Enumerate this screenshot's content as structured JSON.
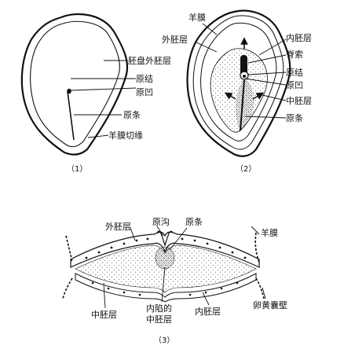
{
  "fig1": {
    "caption": "（1）",
    "labels": {
      "embryonic_disc_epiblast": "胚盘外胚层",
      "primitive_node": "原结",
      "primitive_pit": "原凹",
      "primitive_streak": "原条",
      "amnion_cut_edge": "羊膜切缘"
    }
  },
  "fig2": {
    "caption": "（2）",
    "labels": {
      "amnion": "羊膜",
      "ectoderm": "外胚层",
      "endoderm": "内胚层",
      "notochord": "脊索",
      "primitive_node": "原结",
      "primitive_pit": "原凹",
      "mesoderm": "中胚层",
      "primitive_streak": "原条"
    }
  },
  "fig3": {
    "caption": "（3）",
    "labels": {
      "primitive_groove": "原沟",
      "primitive_streak": "原条",
      "ectoderm": "外胚层",
      "amnion": "羊膜",
      "mesoderm": "中胚层",
      "invaginated_line1": "内陷的",
      "invaginated_line2": "中胚层",
      "endoderm": "内胚层",
      "yolk_sac_wall": "卵黄囊壁"
    }
  },
  "colors": {
    "ink": "#111111",
    "paper": "#ffffff",
    "stipple": "#555555"
  }
}
